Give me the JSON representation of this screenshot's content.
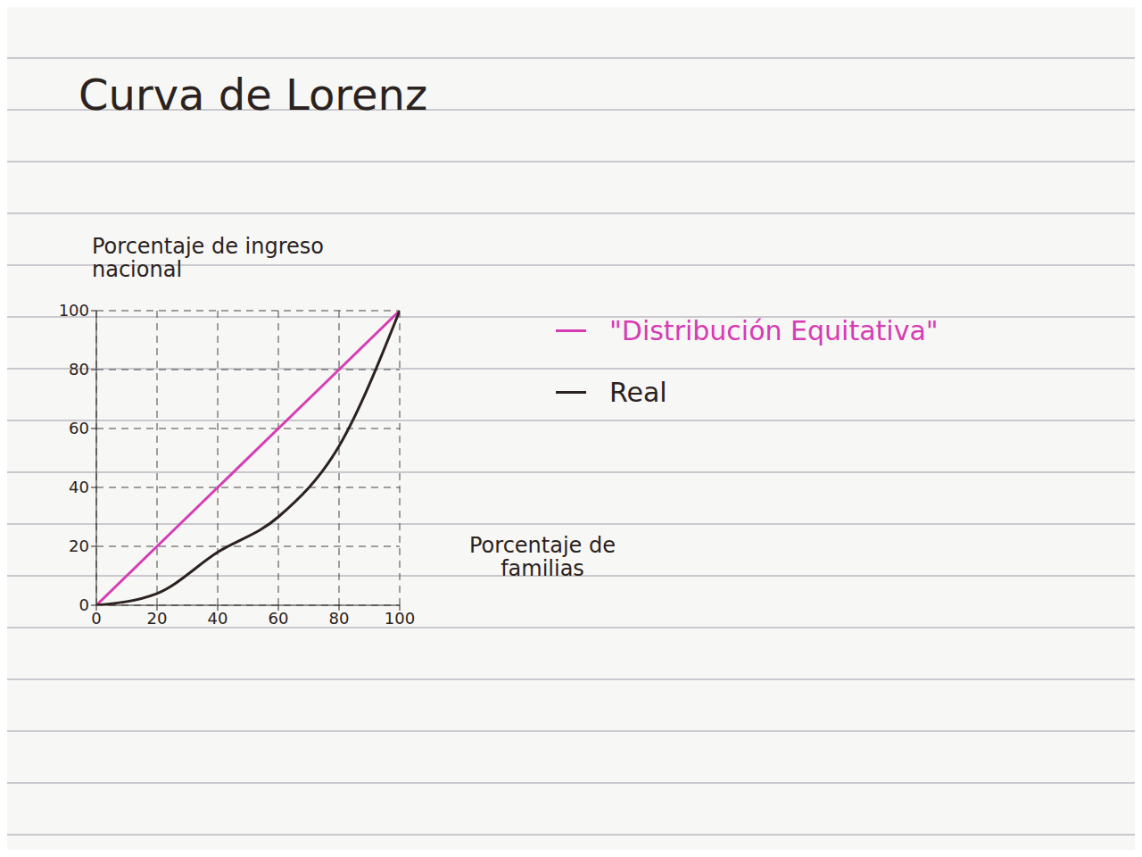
{
  "chart_data": {
    "type": "line",
    "title": "Curva de Lorenz",
    "x_label": "Porcentaje de familias",
    "y_label": "Porcentaje de ingreso nacional",
    "x": [
      0,
      20,
      40,
      60,
      80,
      100
    ],
    "series": [
      {
        "name": "\"Distribución Equitativa\"",
        "color": "#d63cb4",
        "values": [
          0,
          20,
          40,
          60,
          80,
          100
        ]
      },
      {
        "name": "Real",
        "color": "#2b2220",
        "values": [
          0,
          4,
          18,
          30,
          54,
          100
        ]
      }
    ],
    "xlim": [
      0,
      100
    ],
    "ylim": [
      0,
      100
    ],
    "xticks": [
      0,
      20,
      40,
      60,
      80,
      100
    ],
    "yticks": [
      0,
      20,
      40,
      60,
      80,
      100
    ],
    "grid": true
  }
}
